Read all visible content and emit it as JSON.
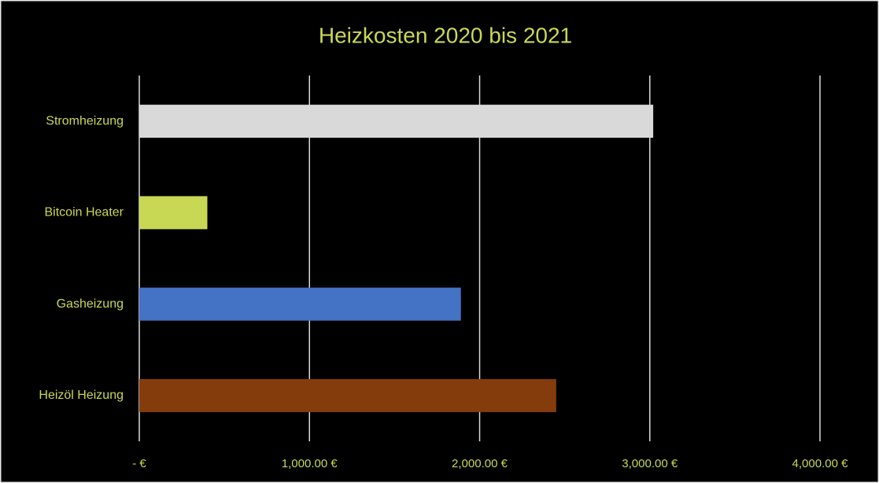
{
  "chart_data": {
    "type": "bar",
    "orientation": "horizontal",
    "title": "Heizkosten 2020 bis 2021",
    "categories": [
      "Stromheizung",
      "Bitcoin Heater",
      "Gasheizung",
      "Heizöl Heizung"
    ],
    "values": [
      3020,
      400,
      1890,
      2450
    ],
    "colors": [
      "#d9d9d9",
      "#c9d854",
      "#4472c4",
      "#843c0c"
    ],
    "xlim": [
      0,
      4000
    ],
    "xticks": [
      {
        "value": 0,
        "label": "-  €"
      },
      {
        "value": 1000,
        "label": "1,000.00 €"
      },
      {
        "value": 2000,
        "label": "2,000.00 €"
      },
      {
        "value": 3000,
        "label": "3,000.00 €"
      },
      {
        "value": 4000,
        "label": "4,000.00 €"
      }
    ],
    "grid": true
  }
}
